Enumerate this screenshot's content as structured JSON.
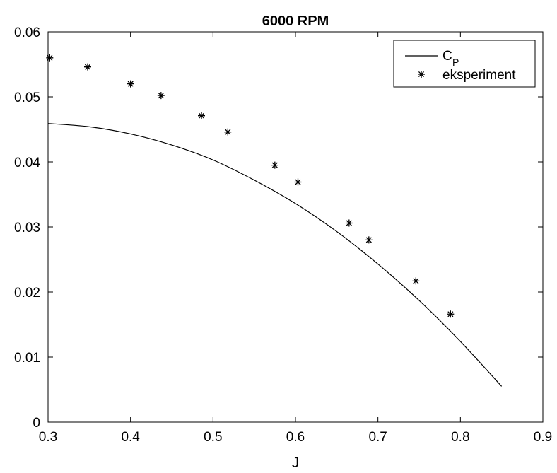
{
  "chart_data": {
    "type": "line",
    "title": "6000 RPM",
    "xlabel": "J",
    "ylabel": "",
    "xlim": [
      0.3,
      0.9
    ],
    "ylim": [
      0,
      0.06
    ],
    "xticks": [
      0.3,
      0.4,
      0.5,
      0.6,
      0.7,
      0.8,
      0.9
    ],
    "xtick_labels": [
      "0.3",
      "0.4",
      "0.5",
      "0.6",
      "0.7",
      "0.8",
      "0.9"
    ],
    "yticks": [
      0,
      0.01,
      0.02,
      0.03,
      0.04,
      0.05,
      0.06
    ],
    "ytick_labels": [
      "0",
      "0.01",
      "0.02",
      "0.03",
      "0.04",
      "0.05",
      "0.06"
    ],
    "grid": false,
    "legend_position": "top-right",
    "series": [
      {
        "name": "C",
        "name_subscript": "P",
        "style": "line",
        "color": "#000000",
        "x": [
          0.3,
          0.35,
          0.4,
          0.45,
          0.5,
          0.55,
          0.6,
          0.65,
          0.7,
          0.75,
          0.8,
          0.85
        ],
        "y": [
          0.0459,
          0.0454,
          0.0443,
          0.0426,
          0.0403,
          0.0372,
          0.0336,
          0.0293,
          0.0243,
          0.0187,
          0.0124,
          0.0055
        ]
      },
      {
        "name": "eksperiment",
        "style": "markers",
        "marker": "*",
        "color": "#000000",
        "x": [
          0.302,
          0.348,
          0.4,
          0.437,
          0.486,
          0.518,
          0.575,
          0.603,
          0.665,
          0.689,
          0.746,
          0.788
        ],
        "y": [
          0.056,
          0.0546,
          0.052,
          0.0502,
          0.0471,
          0.0446,
          0.0395,
          0.0369,
          0.0306,
          0.028,
          0.0217,
          0.0166
        ]
      }
    ]
  }
}
